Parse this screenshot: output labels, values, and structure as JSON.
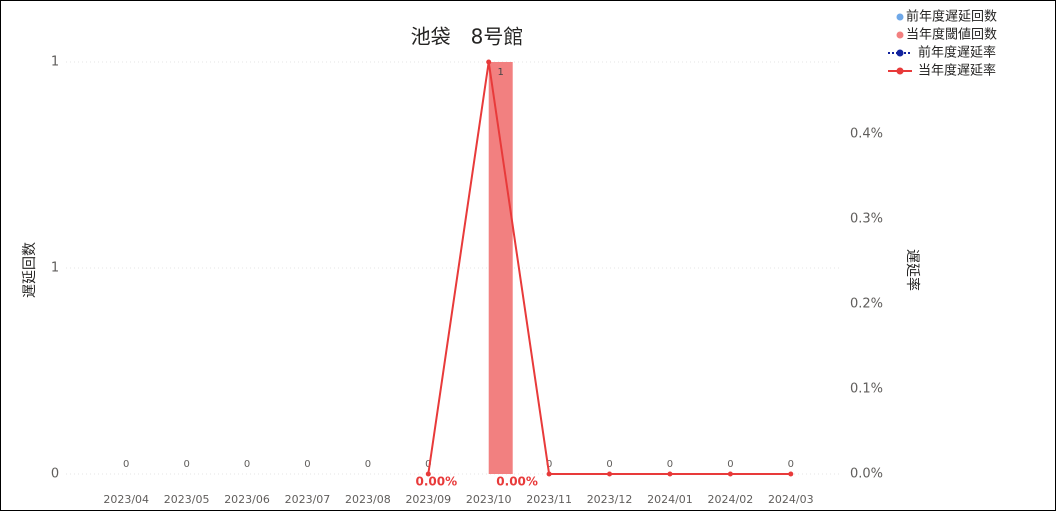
{
  "chart_data": {
    "type": "bar-line",
    "title": "池袋　8号館",
    "y_label": "遅延回数",
    "y2_label": "遅延率",
    "categories": [
      "2023/04",
      "2023/05",
      "2023/06",
      "2023/07",
      "2023/08",
      "2023/09",
      "2023/10",
      "2023/11",
      "2023/12",
      "2024/01",
      "2024/02",
      "2024/03"
    ],
    "ylim": [
      0,
      1
    ],
    "yticks": [
      0,
      {
        "value": 0.5,
        "label": "1"
      },
      1
    ],
    "y2lim": [
      0,
      0.485
    ],
    "y2ticks": [
      {
        "value": 0,
        "label": "0.0%"
      },
      {
        "value": 0.1,
        "label": "0.1%"
      },
      {
        "value": 0.2,
        "label": "0.2%"
      },
      {
        "value": 0.3,
        "label": "0.3%"
      },
      {
        "value": 0.4,
        "label": "0.4%"
      }
    ],
    "grid": true,
    "series": [
      {
        "name": "前年度遅延回数",
        "kind": "bar",
        "color": "#6fa8e8",
        "values": [
          0,
          0,
          0,
          0,
          0,
          0,
          0,
          0,
          0,
          0,
          0,
          0
        ]
      },
      {
        "name": "当年度閾値回数",
        "kind": "bar",
        "color": "#f28080",
        "data_labels": true,
        "values": [
          0,
          0,
          0,
          0,
          0,
          0,
          1,
          0,
          0,
          0,
          0,
          0
        ]
      },
      {
        "name": "前年度遅延率",
        "kind": "line",
        "dash": true,
        "color": "#12239e",
        "axis": "y2",
        "values": [
          null,
          null,
          null,
          null,
          null,
          null,
          null,
          null,
          null,
          null,
          null,
          null
        ]
      },
      {
        "name": "当年度遅延率",
        "kind": "line",
        "color": "#e83a3a",
        "axis": "y2",
        "values": [
          null,
          null,
          null,
          null,
          null,
          0,
          0.485,
          0,
          0,
          0,
          0,
          0
        ],
        "value_labels": [
          null,
          null,
          null,
          null,
          null,
          "0.00%",
          null,
          "0.00%",
          null,
          null,
          null,
          null
        ]
      }
    ]
  }
}
